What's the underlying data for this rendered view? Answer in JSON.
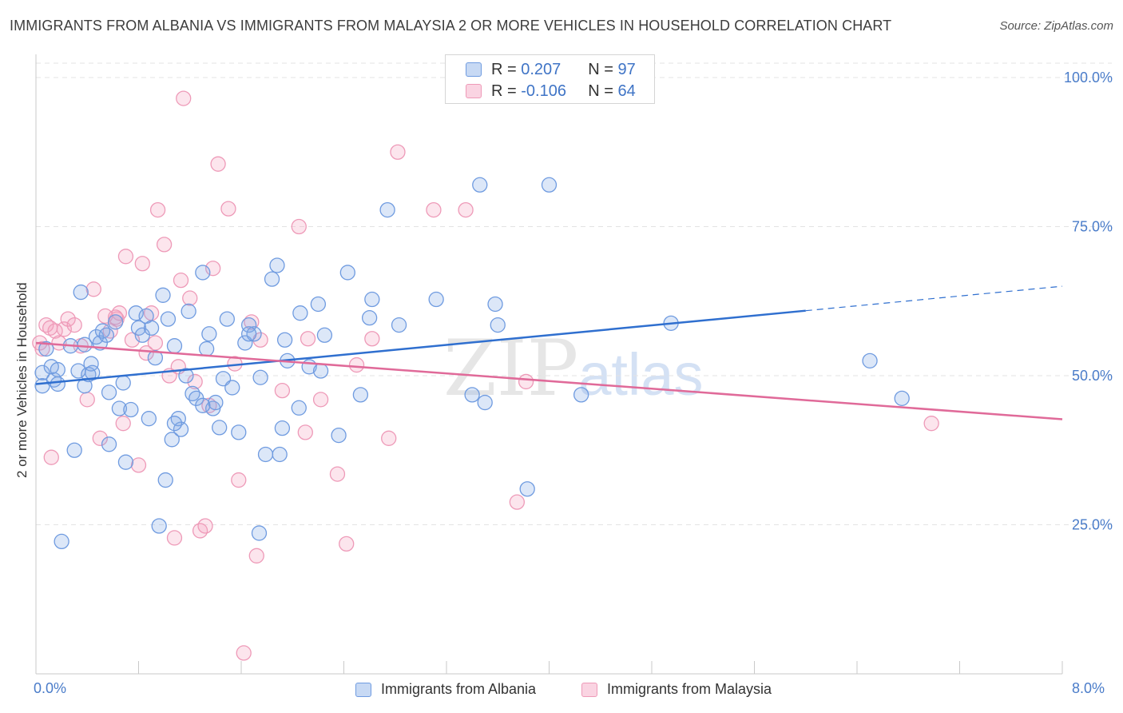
{
  "title": "IMMIGRANTS FROM ALBANIA VS IMMIGRANTS FROM MALAYSIA 2 OR MORE VEHICLES IN HOUSEHOLD CORRELATION CHART",
  "source": "Source: ZipAtlas.com",
  "watermark": {
    "zip": "ZIP",
    "atlas": "atlas"
  },
  "legend": {
    "albania": {
      "r_label": "R =",
      "r_value": "0.207",
      "n_label": "N =",
      "n_value": "97"
    },
    "malaysia": {
      "r_label": "R =",
      "r_value": "-0.106",
      "n_label": "N =",
      "n_value": "64"
    }
  },
  "colors": {
    "albania": "#6f9be0",
    "albania_line": "#2f6fcf",
    "malaysia": "#ee9ab8",
    "malaysia_line": "#e06a99",
    "tick_text": "#4a7cc9"
  },
  "chart_data": {
    "type": "scatter",
    "xlabel": "",
    "ylabel": "2 or more Vehicles in Household",
    "xlim": [
      0,
      8
    ],
    "ylim": [
      0,
      100
    ],
    "x_tick_labels": [
      "0.0%",
      "8.0%"
    ],
    "y_ticks": [
      25,
      50,
      75,
      100
    ],
    "y_tick_labels": [
      "25.0%",
      "50.0%",
      "75.0%",
      "100.0%"
    ],
    "grid": true,
    "legend_position": "top-center",
    "series": [
      {
        "name": "Immigrants from Albania",
        "color": "#6f9be0",
        "trend": {
          "x": [
            0.0,
            6.0
          ],
          "y": [
            48.6,
            60.9
          ],
          "dashed_extension": {
            "x": [
              6.0,
              8.0
            ],
            "y": [
              60.9,
              65.0
            ]
          }
        },
        "points": [
          [
            0.05,
            50.5
          ],
          [
            0.05,
            48.3
          ],
          [
            0.08,
            54.5
          ],
          [
            0.12,
            51.5
          ],
          [
            0.14,
            49.3
          ],
          [
            0.17,
            48.6
          ],
          [
            0.17,
            51.0
          ],
          [
            0.2,
            22.2
          ],
          [
            0.27,
            55.0
          ],
          [
            0.3,
            37.5
          ],
          [
            0.33,
            50.8
          ],
          [
            0.35,
            64.0
          ],
          [
            0.38,
            48.3
          ],
          [
            0.41,
            50.2
          ],
          [
            0.43,
            52.0
          ],
          [
            0.47,
            56.5
          ],
          [
            0.5,
            55.5
          ],
          [
            0.52,
            57.5
          ],
          [
            0.55,
            56.8
          ],
          [
            0.57,
            38.5
          ],
          [
            0.62,
            59.0
          ],
          [
            0.65,
            44.5
          ],
          [
            0.68,
            48.8
          ],
          [
            0.7,
            35.5
          ],
          [
            0.74,
            44.3
          ],
          [
            0.78,
            60.5
          ],
          [
            0.8,
            58.0
          ],
          [
            0.83,
            56.8
          ],
          [
            0.86,
            60.0
          ],
          [
            0.88,
            42.8
          ],
          [
            0.9,
            58.0
          ],
          [
            0.93,
            53.0
          ],
          [
            0.96,
            24.8
          ],
          [
            0.99,
            63.5
          ],
          [
            1.01,
            32.5
          ],
          [
            1.03,
            59.5
          ],
          [
            1.06,
            39.3
          ],
          [
            1.08,
            55.0
          ],
          [
            1.11,
            42.8
          ],
          [
            1.13,
            41.0
          ],
          [
            1.17,
            50.0
          ],
          [
            1.19,
            60.8
          ],
          [
            1.22,
            47.0
          ],
          [
            1.25,
            46.2
          ],
          [
            1.3,
            67.3
          ],
          [
            1.33,
            54.5
          ],
          [
            1.35,
            57.0
          ],
          [
            1.38,
            44.5
          ],
          [
            1.4,
            45.5
          ],
          [
            1.43,
            41.3
          ],
          [
            1.46,
            49.5
          ],
          [
            1.49,
            59.5
          ],
          [
            1.53,
            48.0
          ],
          [
            1.58,
            40.5
          ],
          [
            1.63,
            55.5
          ],
          [
            1.66,
            58.5
          ],
          [
            1.7,
            57.0
          ],
          [
            1.74,
            23.6
          ],
          [
            1.75,
            49.7
          ],
          [
            1.79,
            36.8
          ],
          [
            1.84,
            66.2
          ],
          [
            1.88,
            68.5
          ],
          [
            1.9,
            36.8
          ],
          [
            1.92,
            41.2
          ],
          [
            1.94,
            56.0
          ],
          [
            1.96,
            52.5
          ],
          [
            2.05,
            44.6
          ],
          [
            2.06,
            60.5
          ],
          [
            2.13,
            51.5
          ],
          [
            2.2,
            62.0
          ],
          [
            2.22,
            50.8
          ],
          [
            2.25,
            56.8
          ],
          [
            2.36,
            40.0
          ],
          [
            2.43,
            67.3
          ],
          [
            2.53,
            46.8
          ],
          [
            2.6,
            59.7
          ],
          [
            2.62,
            62.8
          ],
          [
            2.74,
            77.8
          ],
          [
            2.83,
            58.5
          ],
          [
            3.12,
            62.8
          ],
          [
            3.4,
            46.8
          ],
          [
            3.46,
            82.0
          ],
          [
            3.5,
            45.5
          ],
          [
            3.58,
            62.0
          ],
          [
            3.6,
            58.5
          ],
          [
            3.83,
            31.0
          ],
          [
            4.0,
            82.0
          ],
          [
            4.25,
            46.8
          ],
          [
            4.95,
            58.8
          ],
          [
            6.5,
            52.5
          ],
          [
            6.75,
            46.2
          ],
          [
            0.44,
            50.5
          ],
          [
            1.08,
            42.0
          ],
          [
            0.57,
            47.2
          ],
          [
            1.3,
            45.0
          ],
          [
            1.66,
            57.0
          ],
          [
            0.38,
            55.2
          ]
        ]
      },
      {
        "name": "Immigrants from Malaysia",
        "color": "#ee9ab8",
        "trend": {
          "x": [
            0.0,
            8.0
          ],
          "y": [
            55.5,
            42.7
          ]
        },
        "points": [
          [
            0.03,
            55.5
          ],
          [
            0.05,
            54.5
          ],
          [
            0.08,
            58.5
          ],
          [
            0.12,
            36.3
          ],
          [
            0.15,
            57.5
          ],
          [
            0.18,
            55.5
          ],
          [
            0.22,
            57.8
          ],
          [
            0.25,
            59.5
          ],
          [
            0.3,
            58.5
          ],
          [
            0.35,
            55.0
          ],
          [
            0.4,
            46.0
          ],
          [
            0.45,
            64.5
          ],
          [
            0.5,
            39.5
          ],
          [
            0.54,
            60.0
          ],
          [
            0.58,
            57.5
          ],
          [
            0.63,
            59.5
          ],
          [
            0.65,
            60.5
          ],
          [
            0.68,
            42.0
          ],
          [
            0.7,
            70.0
          ],
          [
            0.75,
            56.0
          ],
          [
            0.8,
            35.0
          ],
          [
            0.83,
            68.8
          ],
          [
            0.86,
            53.8
          ],
          [
            0.9,
            60.5
          ],
          [
            0.93,
            55.5
          ],
          [
            0.95,
            77.8
          ],
          [
            1.0,
            72.0
          ],
          [
            1.04,
            50.0
          ],
          [
            1.08,
            22.8
          ],
          [
            1.11,
            51.5
          ],
          [
            1.13,
            66.0
          ],
          [
            1.15,
            96.5
          ],
          [
            1.2,
            63.0
          ],
          [
            1.24,
            49.0
          ],
          [
            1.28,
            24.0
          ],
          [
            1.32,
            24.8
          ],
          [
            1.38,
            68.0
          ],
          [
            1.42,
            85.5
          ],
          [
            1.5,
            78.0
          ],
          [
            1.55,
            52.0
          ],
          [
            1.58,
            32.5
          ],
          [
            1.62,
            3.5
          ],
          [
            1.68,
            59.0
          ],
          [
            1.72,
            19.8
          ],
          [
            1.75,
            56.0
          ],
          [
            1.92,
            47.5
          ],
          [
            2.05,
            75.0
          ],
          [
            2.1,
            40.5
          ],
          [
            2.12,
            56.2
          ],
          [
            2.22,
            46.0
          ],
          [
            2.35,
            33.5
          ],
          [
            2.42,
            21.8
          ],
          [
            2.5,
            51.8
          ],
          [
            2.62,
            56.2
          ],
          [
            2.75,
            39.5
          ],
          [
            2.82,
            87.5
          ],
          [
            3.1,
            77.8
          ],
          [
            3.35,
            77.8
          ],
          [
            3.75,
            28.8
          ],
          [
            3.82,
            49.0
          ],
          [
            6.98,
            42.0
          ],
          [
            0.11,
            58.0
          ],
          [
            0.62,
            59.8
          ],
          [
            1.35,
            45.0
          ]
        ]
      }
    ]
  },
  "bottom_legend": {
    "albania": "Immigrants from Albania",
    "malaysia": "Immigrants from Malaysia"
  }
}
